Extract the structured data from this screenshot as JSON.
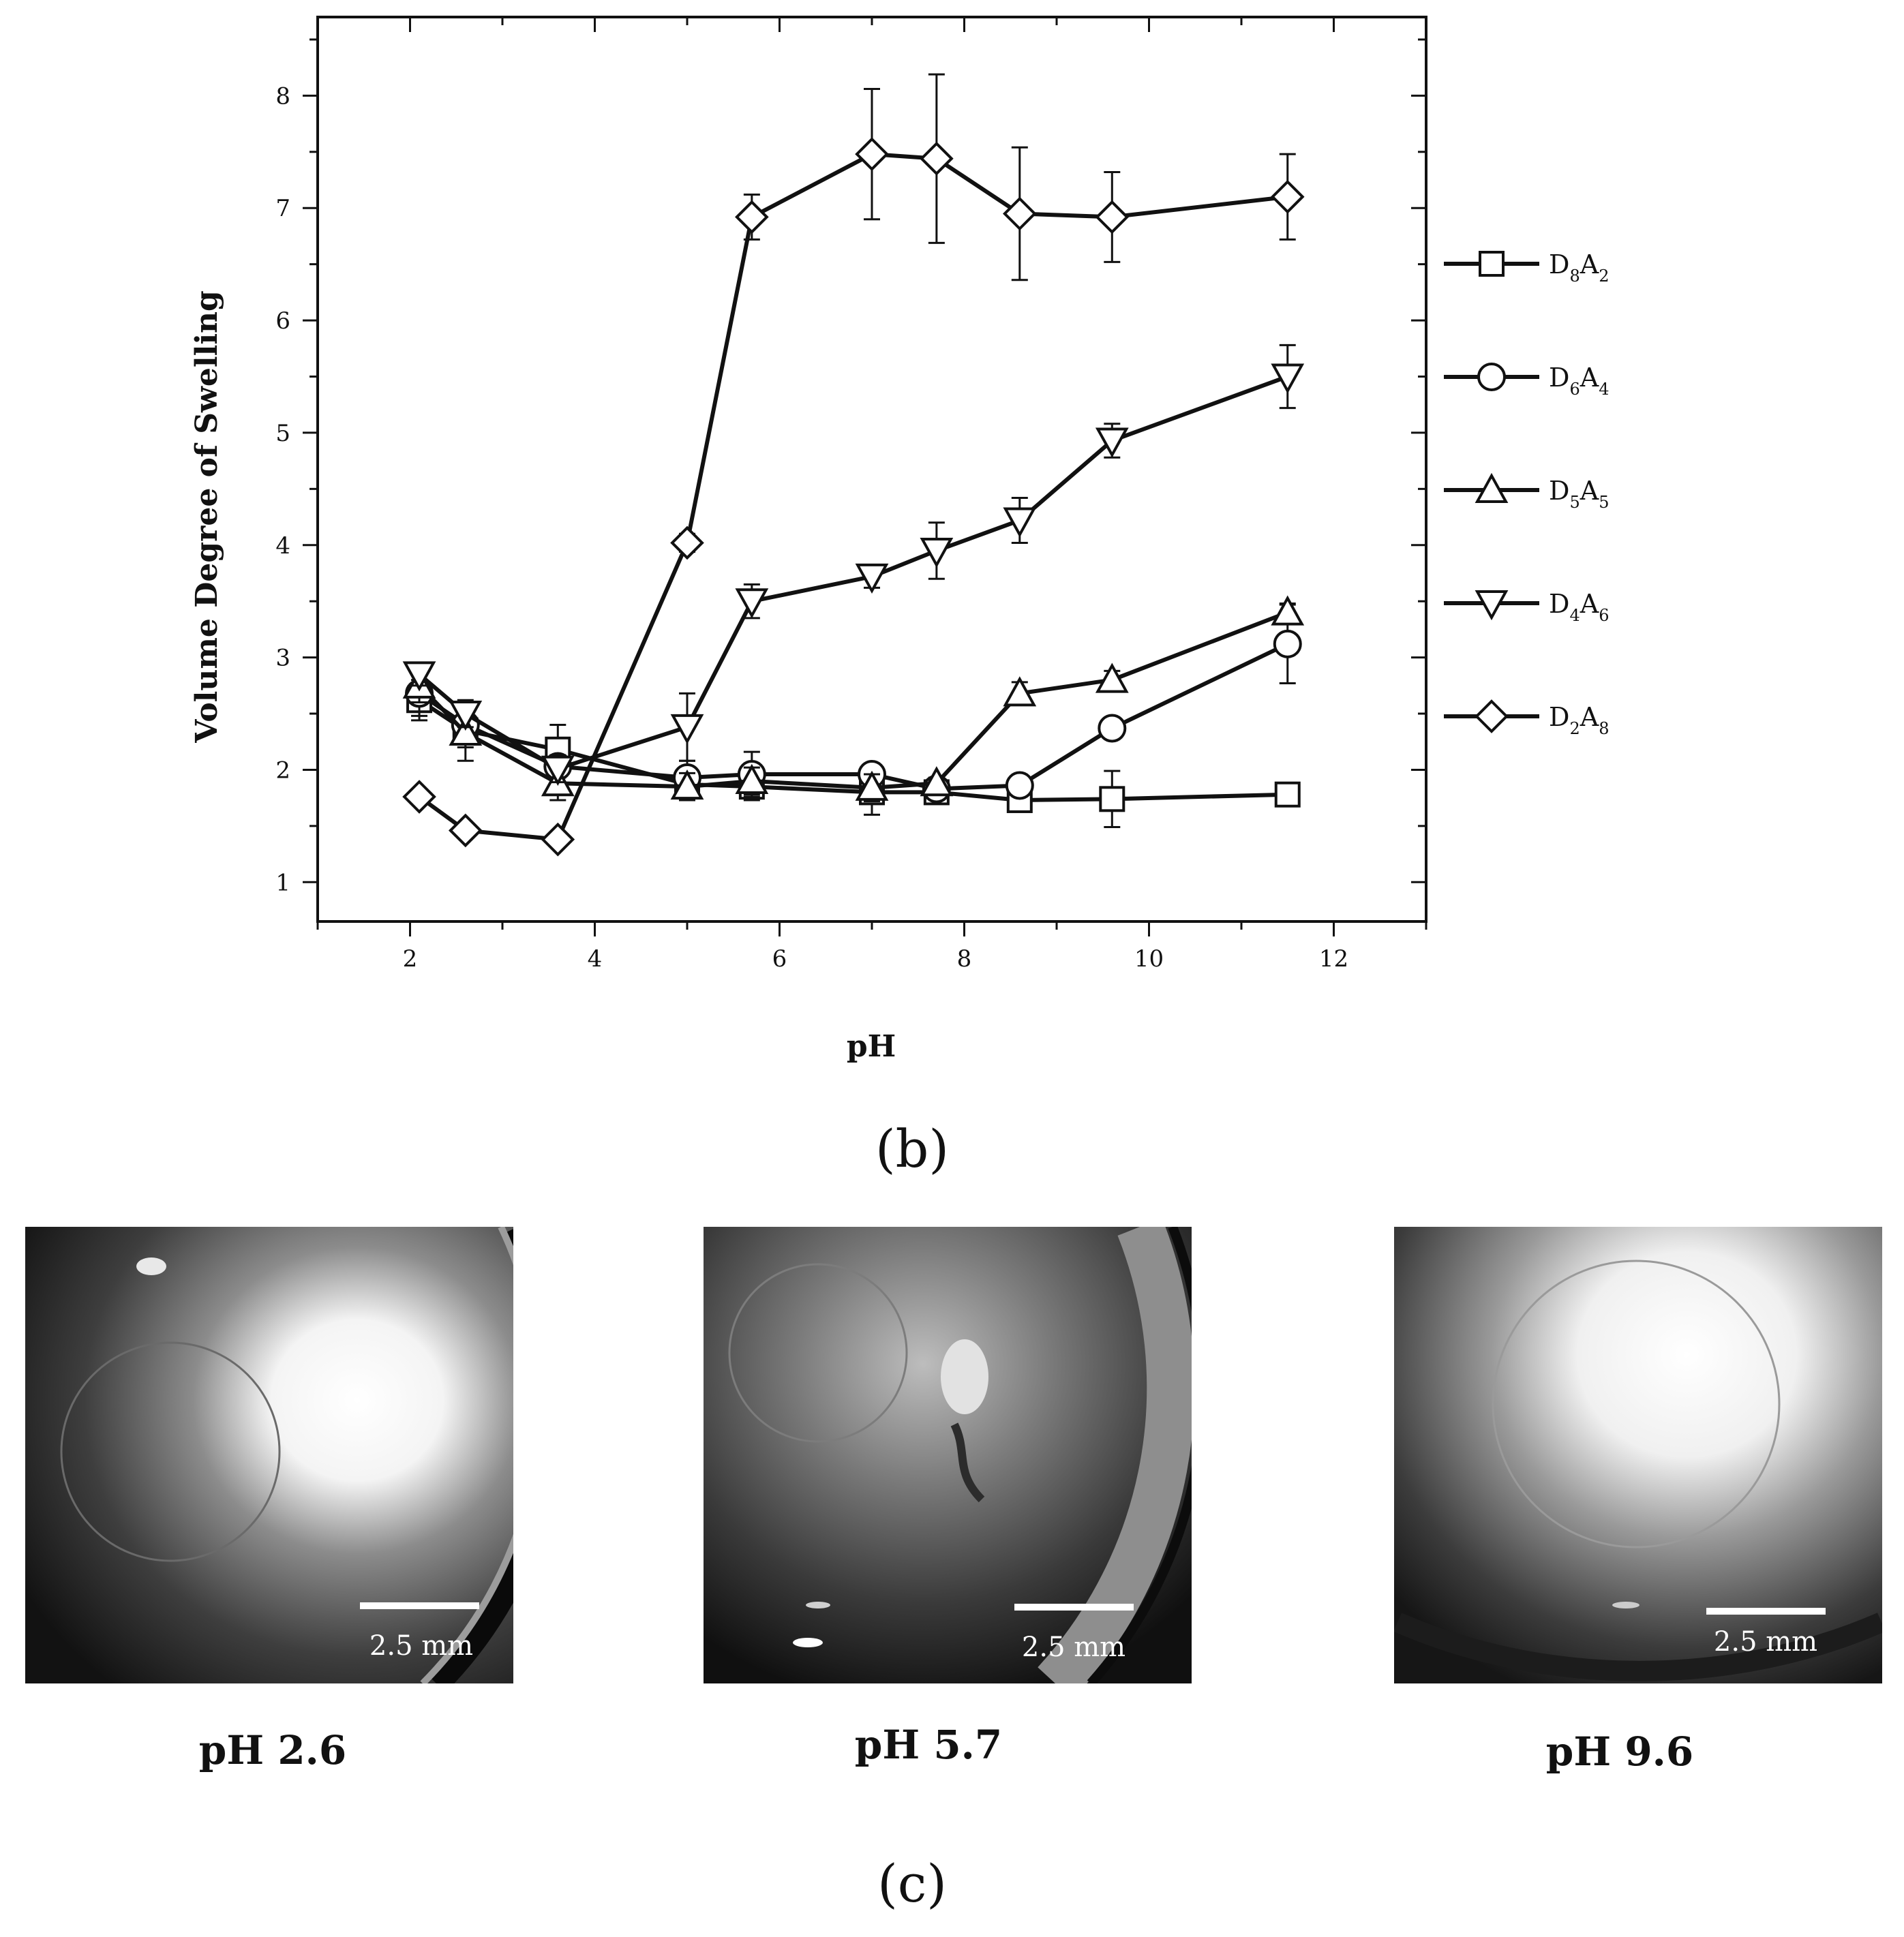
{
  "chart_data": {
    "type": "line",
    "xlabel": "pH",
    "ylabel": "Volume Degree of Swelling",
    "xlim": [
      1,
      13
    ],
    "ylim": [
      0.65,
      8.7
    ],
    "xticks": [
      2,
      4,
      6,
      8,
      10,
      12
    ],
    "yticks": [
      1,
      2,
      3,
      4,
      5,
      6,
      7,
      8
    ],
    "legend_position": "right",
    "series": [
      {
        "name": "D8A2",
        "base1": "D",
        "sub1": "8",
        "base2": "A",
        "sub2": "2",
        "marker": "square",
        "x": [
          2.1,
          2.6,
          3.6,
          5.0,
          5.7,
          7.0,
          7.7,
          8.6,
          9.6,
          11.5
        ],
        "y": [
          2.62,
          2.35,
          2.18,
          1.87,
          1.85,
          1.8,
          1.8,
          1.73,
          1.74,
          1.78
        ],
        "err": [
          0.18,
          0.15,
          0.22,
          0.12,
          0.12,
          0.2,
          0.08,
          0.1,
          0.25,
          0.08
        ]
      },
      {
        "name": "D6A4",
        "base1": "D",
        "sub1": "6",
        "base2": "A",
        "sub2": "4",
        "marker": "circle",
        "x": [
          2.1,
          2.6,
          3.6,
          5.0,
          5.7,
          7.0,
          7.7,
          8.6,
          9.6,
          11.5
        ],
        "y": [
          2.68,
          2.4,
          2.03,
          1.93,
          1.96,
          1.96,
          1.83,
          1.86,
          2.37,
          3.12
        ],
        "err": [
          0.2,
          0.15,
          0.1,
          0.15,
          0.2,
          0.08,
          0.08,
          0.08,
          0.08,
          0.35
        ]
      },
      {
        "name": "D5A5",
        "base1": "D",
        "sub1": "5",
        "base2": "A",
        "sub2": "5",
        "marker": "triangle-up",
        "x": [
          2.1,
          2.6,
          3.6,
          5.0,
          5.7,
          7.0,
          7.7,
          8.6,
          9.6,
          11.5
        ],
        "y": [
          2.75,
          2.33,
          1.88,
          1.85,
          1.9,
          1.84,
          1.88,
          2.68,
          2.8,
          3.4
        ],
        "err": [
          0.15,
          0.25,
          0.15,
          0.12,
          0.12,
          0.12,
          0.05,
          0.1,
          0.08,
          0.08
        ]
      },
      {
        "name": "D4A6",
        "base1": "D",
        "sub1": "4",
        "base2": "A",
        "sub2": "6",
        "marker": "triangle-down",
        "x": [
          2.1,
          2.6,
          3.6,
          5.0,
          5.7,
          7.0,
          7.7,
          8.6,
          9.6,
          11.5
        ],
        "y": [
          2.85,
          2.5,
          2.01,
          2.38,
          3.5,
          3.72,
          3.95,
          4.22,
          4.93,
          5.5
        ],
        "err": [
          0.1,
          0.12,
          0.12,
          0.3,
          0.15,
          0.1,
          0.25,
          0.2,
          0.15,
          0.28
        ]
      },
      {
        "name": "D2A8",
        "base1": "D",
        "sub1": "2",
        "base2": "A",
        "sub2": "8",
        "marker": "diamond",
        "x": [
          2.1,
          2.6,
          3.6,
          5.0,
          5.7,
          7.0,
          7.7,
          8.6,
          9.6,
          11.5
        ],
        "y": [
          1.76,
          1.46,
          1.38,
          4.02,
          6.92,
          7.48,
          7.44,
          6.95,
          6.92,
          7.1
        ],
        "err": [
          0.05,
          0.04,
          0.04,
          0.08,
          0.2,
          0.58,
          0.75,
          0.59,
          0.4,
          0.38
        ]
      }
    ]
  },
  "panel_b_label": "(b)",
  "panel_c_label": "(c)",
  "photos": [
    {
      "caption": "pH 2.6",
      "scale_label": "2.5 mm"
    },
    {
      "caption": "pH 5.7",
      "scale_label": "2.5 mm"
    },
    {
      "caption": "pH 9.6",
      "scale_label": "2.5 mm"
    }
  ]
}
